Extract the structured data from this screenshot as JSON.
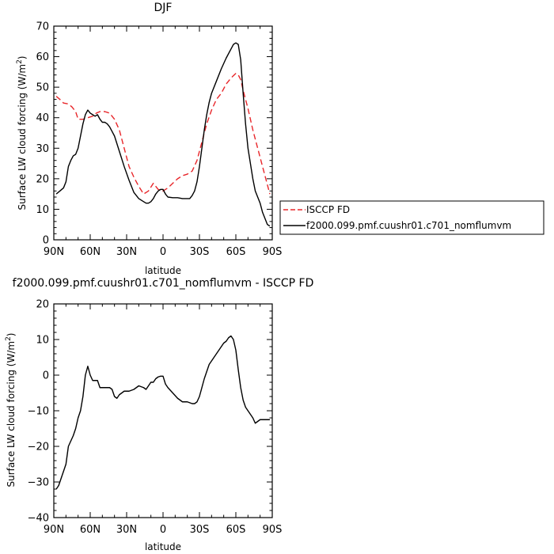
{
  "chart_data": [
    {
      "type": "line",
      "title": "DJF",
      "xlabel": "latitude",
      "ylabel_main": "Surface LW cloud forcing (W/m",
      "ylabel_sup": "2",
      "ylabel_tail": ")",
      "xlim": [
        90,
        -90
      ],
      "ylim": [
        0,
        70
      ],
      "xticks": [
        {
          "value": 90,
          "label": "90N"
        },
        {
          "value": 60,
          "label": "60N"
        },
        {
          "value": 30,
          "label": "30N"
        },
        {
          "value": 0,
          "label": "0"
        },
        {
          "value": -30,
          "label": "30S"
        },
        {
          "value": -60,
          "label": "60S"
        },
        {
          "value": -90,
          "label": "90S"
        }
      ],
      "yticks": [
        0,
        10,
        20,
        30,
        40,
        50,
        60,
        70
      ],
      "legend_position": "right",
      "series": [
        {
          "name": "ISCCP FD",
          "color": "#e8262a",
          "dashed": true,
          "x": [
            88,
            85,
            82,
            78,
            75,
            72,
            70,
            66,
            62,
            58,
            55,
            52,
            48,
            44,
            40,
            36,
            32,
            28,
            24,
            20,
            16,
            12,
            8,
            4,
            0,
            -4,
            -8,
            -12,
            -16,
            -20,
            -24,
            -28,
            -32,
            -36,
            -40,
            -44,
            -48,
            -52,
            -56,
            -60,
            -62,
            -64,
            -66,
            -70,
            -74,
            -78,
            -82,
            -86,
            -88
          ],
          "y": [
            47,
            46,
            44.8,
            44.5,
            43.5,
            42,
            39.5,
            39.5,
            40,
            40.5,
            41.5,
            42,
            42,
            41.5,
            39.5,
            36,
            30,
            24,
            20.5,
            17.5,
            15,
            16,
            18.5,
            16.5,
            16,
            17,
            18.5,
            20,
            21,
            21.5,
            22.5,
            26,
            32,
            38,
            42.5,
            46,
            48,
            51,
            53,
            54.5,
            54,
            52.5,
            49,
            43,
            36,
            30,
            24,
            18,
            15
          ]
        },
        {
          "name": "f2000.099.pmf.cuushr01.c701_nomflumvm",
          "color": "#000000",
          "dashed": false,
          "x": [
            88,
            85,
            82,
            80,
            78,
            76,
            74,
            72,
            70,
            68,
            66,
            64,
            62,
            60,
            58,
            56,
            54,
            52,
            50,
            48,
            46,
            44,
            42,
            40,
            36,
            32,
            28,
            24,
            20,
            16,
            14,
            12,
            10,
            8,
            6,
            4,
            2,
            0,
            -2,
            -4,
            -8,
            -12,
            -16,
            -20,
            -22,
            -24,
            -26,
            -28,
            -30,
            -32,
            -34,
            -36,
            -38,
            -40,
            -44,
            -48,
            -52,
            -56,
            -58,
            -60,
            -62,
            -64,
            -66,
            -68,
            -70,
            -72,
            -74,
            -76,
            -78,
            -80,
            -82,
            -84,
            -86,
            -88
          ],
          "y": [
            15,
            16,
            17,
            19,
            24,
            26,
            27.5,
            28,
            30,
            34,
            38,
            41,
            42.5,
            41.5,
            41,
            40.5,
            41,
            39.5,
            38.5,
            38.5,
            38,
            37,
            35.5,
            34,
            29,
            24,
            19.5,
            15.5,
            13.5,
            12.5,
            12,
            12,
            12.5,
            13.5,
            15,
            16,
            16.5,
            16.5,
            15,
            14,
            13.8,
            13.8,
            13.5,
            13.5,
            13.5,
            14.5,
            16,
            19,
            24,
            30,
            36,
            41,
            45,
            48,
            52,
            56,
            59.5,
            62.5,
            64,
            64.5,
            64,
            59,
            48,
            38,
            30,
            25,
            20,
            16,
            14,
            12,
            9,
            7,
            5,
            4.5
          ]
        }
      ]
    },
    {
      "type": "line",
      "title": "f2000.099.pmf.cuushr01.c701_nomflumvm - ISCCP FD",
      "xlabel": "latitude",
      "ylabel_main": "Surface LW cloud forcing (W/m",
      "ylabel_sup": "2",
      "ylabel_tail": ")",
      "xlim": [
        90,
        -90
      ],
      "ylim": [
        -40,
        20
      ],
      "xticks": [
        {
          "value": 90,
          "label": "90N"
        },
        {
          "value": 60,
          "label": "60N"
        },
        {
          "value": 30,
          "label": "30N"
        },
        {
          "value": 0,
          "label": "0"
        },
        {
          "value": -30,
          "label": "30S"
        },
        {
          "value": -60,
          "label": "60S"
        },
        {
          "value": -90,
          "label": "90S"
        }
      ],
      "yticks": [
        -40,
        -30,
        -20,
        -10,
        0,
        10,
        20
      ],
      "series": [
        {
          "color": "#000000",
          "dashed": false,
          "x": [
            88,
            86,
            84,
            82,
            80,
            78,
            76,
            74,
            72,
            70,
            68,
            66,
            64,
            62,
            60,
            58,
            56,
            54,
            52,
            50,
            48,
            46,
            44,
            42,
            40,
            38,
            36,
            32,
            28,
            24,
            20,
            16,
            14,
            12,
            10,
            8,
            6,
            4,
            2,
            0,
            -2,
            -4,
            -8,
            -12,
            -16,
            -20,
            -24,
            -26,
            -28,
            -30,
            -34,
            -38,
            -42,
            -46,
            -48,
            -50,
            -52,
            -54,
            -56,
            -58,
            -60,
            -62,
            -64,
            -66,
            -68,
            -70,
            -72,
            -74,
            -76,
            -78,
            -80,
            -84,
            -88
          ],
          "y": [
            -32,
            -31,
            -29,
            -27,
            -25,
            -20,
            -18.5,
            -17,
            -15,
            -12,
            -10,
            -6,
            0,
            2.5,
            0,
            -1.5,
            -1.5,
            -1.5,
            -3.5,
            -3.5,
            -3.5,
            -3.5,
            -3.5,
            -4,
            -6,
            -6.5,
            -5.5,
            -4.5,
            -4.5,
            -4,
            -3,
            -3.5,
            -4,
            -3,
            -2,
            -2,
            -1,
            -0.5,
            -0.3,
            -0.3,
            -2.5,
            -3.5,
            -5,
            -6.5,
            -7.5,
            -7.5,
            -8,
            -8,
            -7.5,
            -6,
            -1,
            3,
            5,
            7,
            8,
            9,
            9.5,
            10.5,
            11,
            10,
            7,
            1.5,
            -3.5,
            -7,
            -9,
            -10,
            -11,
            -12,
            -13.5,
            -13,
            -12.5,
            -12.5,
            -12.5
          ]
        }
      ]
    }
  ]
}
